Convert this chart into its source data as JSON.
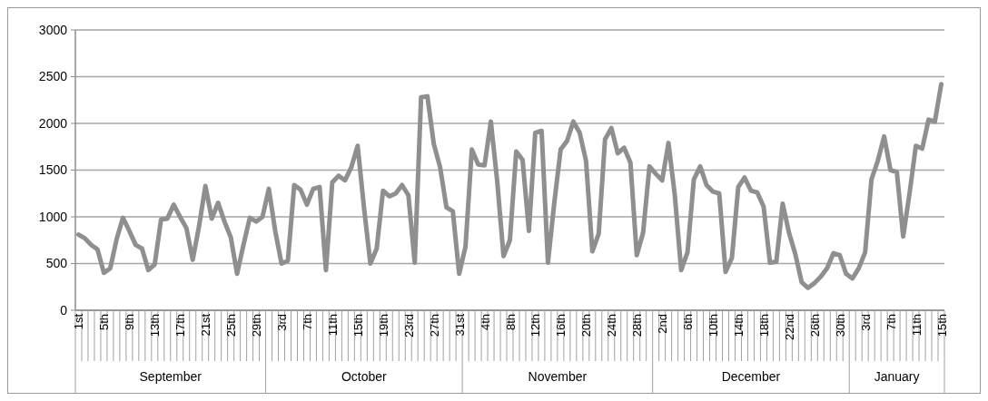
{
  "chart_data": {
    "type": "line",
    "categories": [
      "1st",
      null,
      null,
      null,
      "5th",
      null,
      null,
      null,
      "9th",
      null,
      null,
      null,
      "13th",
      null,
      null,
      null,
      "17th",
      null,
      null,
      null,
      "21st",
      null,
      null,
      null,
      "25th",
      null,
      null,
      null,
      "29th",
      null,
      null,
      null,
      "3rd",
      null,
      null,
      null,
      "7th",
      null,
      null,
      null,
      "11th",
      null,
      null,
      null,
      "15th",
      null,
      null,
      null,
      "19th",
      null,
      null,
      null,
      "23rd",
      null,
      null,
      null,
      "27th",
      null,
      null,
      null,
      "31st",
      null,
      null,
      null,
      "4th",
      null,
      null,
      null,
      "8th",
      null,
      null,
      null,
      "12th",
      null,
      null,
      null,
      "16th",
      null,
      null,
      null,
      "20th",
      null,
      null,
      null,
      "24th",
      null,
      null,
      null,
      "28th",
      null,
      null,
      null,
      "2nd",
      null,
      null,
      null,
      "6th",
      null,
      null,
      null,
      "10th",
      null,
      null,
      null,
      "14th",
      null,
      null,
      null,
      "18th",
      null,
      null,
      null,
      "22nd",
      null,
      null,
      null,
      "26th",
      null,
      null,
      null,
      "30th",
      null,
      null,
      null,
      "3rd",
      null,
      null,
      null,
      "7th",
      null,
      null,
      null,
      "11th",
      null,
      null,
      null,
      "15th"
    ],
    "series": [
      {
        "color": "#8f8f8f",
        "values": [
          810,
          770,
          700,
          650,
          400,
          450,
          760,
          990,
          850,
          700,
          660,
          430,
          490,
          970,
          980,
          1130,
          1000,
          880,
          540,
          900,
          1330,
          980,
          1150,
          950,
          780,
          390,
          700,
          990,
          950,
          1000,
          1300,
          850,
          500,
          530,
          1340,
          1290,
          1130,
          1300,
          1320,
          430,
          1370,
          1440,
          1390,
          1530,
          1760,
          1100,
          500,
          660,
          1280,
          1220,
          1250,
          1340,
          1230,
          510,
          2280,
          2290,
          1780,
          1530,
          1100,
          1060,
          390,
          680,
          1720,
          1560,
          1550,
          2020,
          1380,
          580,
          750,
          1700,
          1610,
          850,
          1900,
          1920,
          510,
          1150,
          1720,
          1810,
          2020,
          1900,
          1600,
          630,
          820,
          1830,
          1950,
          1680,
          1740,
          1580,
          590,
          830,
          1540,
          1460,
          1390,
          1790,
          1230,
          430,
          620,
          1400,
          1540,
          1340,
          1270,
          1250,
          410,
          560,
          1320,
          1420,
          1280,
          1260,
          1110,
          510,
          520,
          1140,
          830,
          600,
          300,
          240,
          290,
          360,
          450,
          610,
          590,
          390,
          340,
          450,
          620,
          1400,
          1600,
          1860,
          1500,
          1480,
          790,
          1250,
          1760,
          1730,
          2040,
          2020,
          2420
        ]
      }
    ],
    "annotations": [
      "September",
      "October",
      "November",
      "December",
      "January"
    ],
    "ylim": [
      0,
      3000
    ],
    "yticks": [
      0,
      500,
      1000,
      1500,
      2000,
      2500,
      3000
    ],
    "grid": "y",
    "marker": "none",
    "line_style": "solid"
  }
}
